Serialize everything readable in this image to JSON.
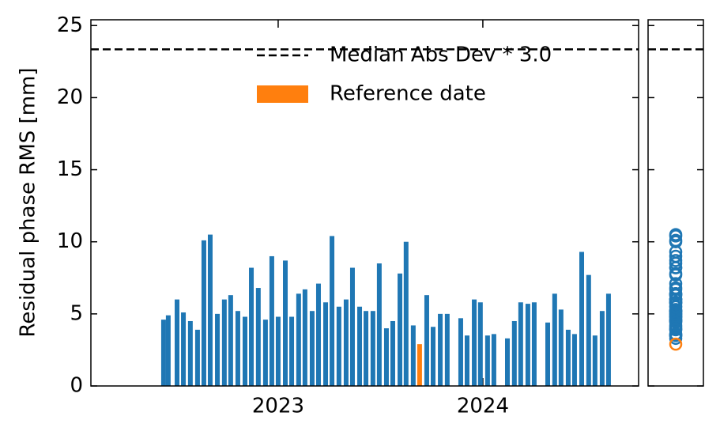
{
  "chart_data": {
    "type": "bar",
    "ylabel": "Residual phase RMS [mm]",
    "xlim": [
      2022.085,
      2024.761
    ],
    "xticks": [
      2023,
      2024
    ],
    "ylim": [
      0,
      25.4
    ],
    "yticks": [
      0,
      5,
      10,
      15,
      20,
      25
    ],
    "series": [
      {
        "color": "#1f77b4",
        "x": [
          2022.44,
          2022.463,
          2022.506,
          2022.537,
          2022.571,
          2022.606,
          2022.637,
          2022.668,
          2022.703,
          2022.737,
          2022.768,
          2022.803,
          2022.838,
          2022.869,
          2022.903,
          2022.938,
          2022.969,
          2023.0,
          2023.035,
          2023.066,
          2023.1,
          2023.131,
          2023.166,
          2023.197,
          2023.232,
          2023.263,
          2023.297,
          2023.332,
          2023.363,
          2023.398,
          2023.429,
          2023.463,
          2023.494,
          2023.529,
          2023.56,
          2023.595,
          2023.625,
          2023.66,
          2023.726,
          2023.757,
          2023.792,
          2023.826,
          2023.892,
          2023.923,
          2023.958,
          2023.988,
          2024.023,
          2024.054,
          2024.12,
          2024.154,
          2024.185,
          2024.22,
          2024.251,
          2024.317,
          2024.351,
          2024.382,
          2024.417,
          2024.448,
          2024.483,
          2024.517,
          2024.548,
          2024.583,
          2024.614
        ],
        "values": [
          4.6,
          4.9,
          6.0,
          5.1,
          4.5,
          3.9,
          10.1,
          10.5,
          5.0,
          6.0,
          6.3,
          5.2,
          4.8,
          8.2,
          6.8,
          4.6,
          9.0,
          4.8,
          8.7,
          4.8,
          6.4,
          6.7,
          5.2,
          7.1,
          5.8,
          10.4,
          5.5,
          6.0,
          8.2,
          5.5,
          5.2,
          5.2,
          8.5,
          4.0,
          4.5,
          7.8,
          10.0,
          4.2,
          6.3,
          4.1,
          5.0,
          5.0,
          4.7,
          3.5,
          6.0,
          5.8,
          3.5,
          3.6,
          3.3,
          4.5,
          5.8,
          5.7,
          5.8,
          4.4,
          6.4,
          5.3,
          3.9,
          3.6,
          9.3,
          7.7,
          3.5,
          5.2,
          6.4
        ]
      },
      {
        "name": "Reference date",
        "color": "#ff7f0e",
        "x": [
          2023.691
        ],
        "values": [
          2.9
        ]
      }
    ],
    "hline": {
      "name": "Median Abs Dev * 3.0",
      "value": 23.35,
      "color": "#000000"
    }
  }
}
